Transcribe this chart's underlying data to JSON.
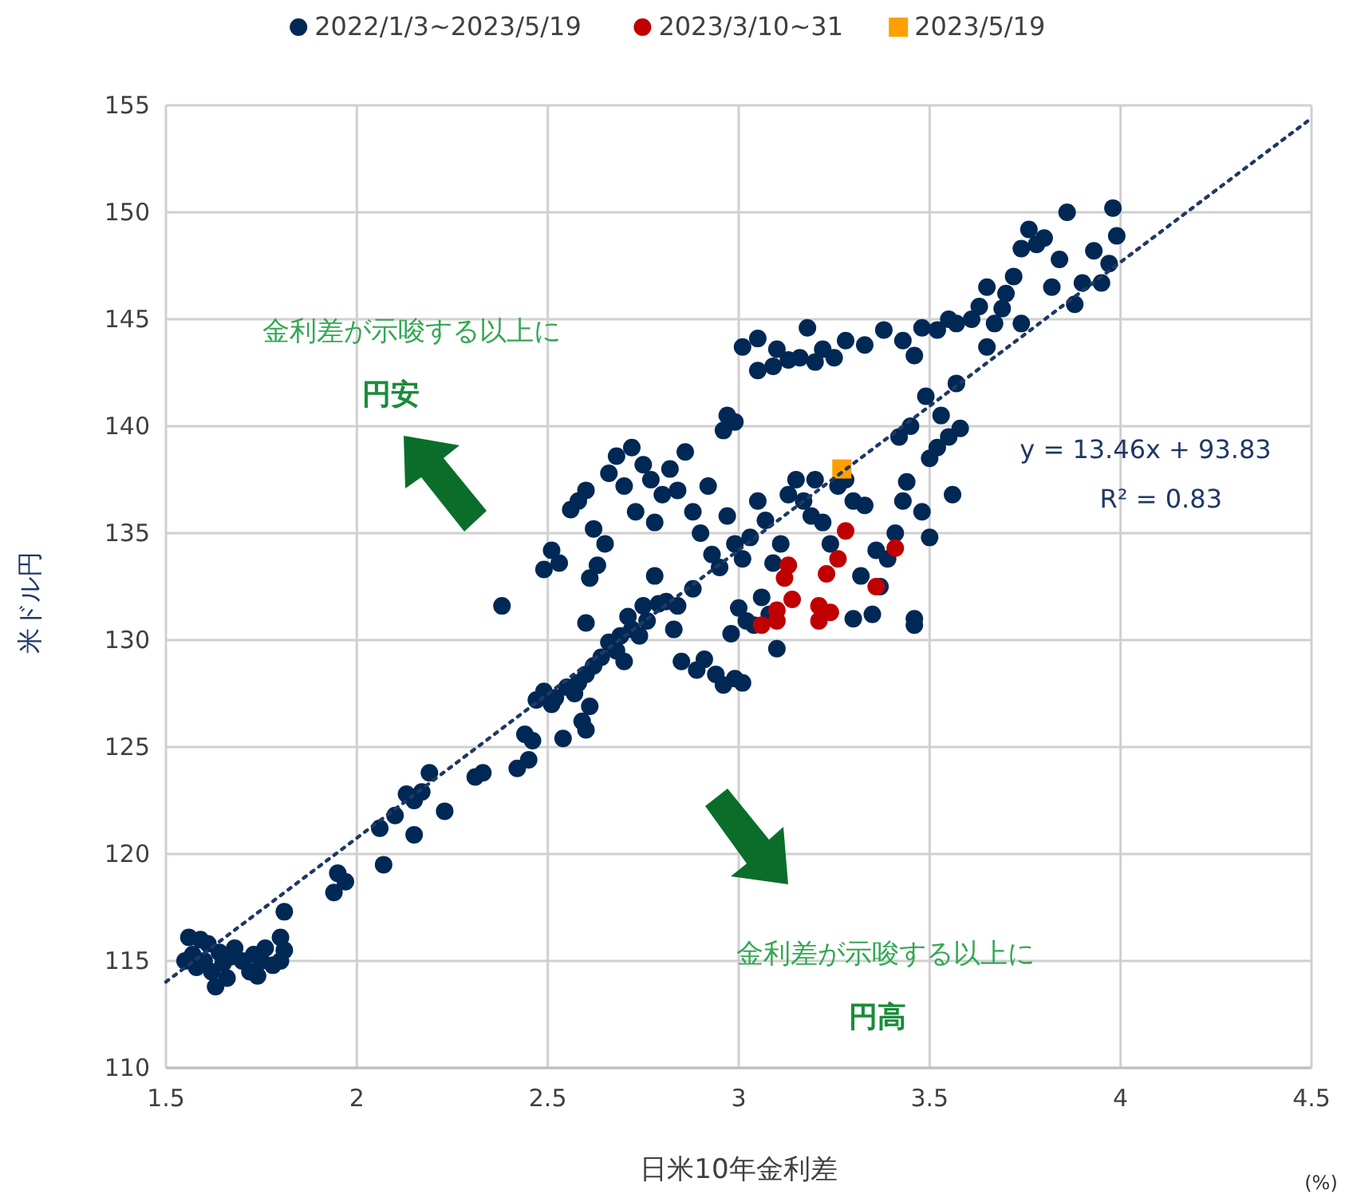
{
  "chart_data": {
    "type": "scatter",
    "xlabel": "日米10年金利差",
    "ylabel": "米ドル円",
    "xlim": [
      1.5,
      4.5
    ],
    "xticks": [
      1.5,
      2,
      2.5,
      3,
      3.5,
      4,
      4.5
    ],
    "ylim": [
      110,
      155
    ],
    "yticks": [
      110,
      115,
      120,
      125,
      130,
      135,
      140,
      145,
      150,
      155
    ],
    "grid": true,
    "legend": "top",
    "marker": "circle",
    "series": [
      {
        "name": "2022/1/3~2023/5/19",
        "color": "#002855",
        "x": [
          1.56,
          1.57,
          1.58,
          1.6,
          1.61,
          1.62,
          1.63,
          1.64,
          1.65,
          1.66,
          1.68,
          1.7,
          1.72,
          1.73,
          1.75,
          1.76,
          1.78,
          1.8,
          1.81,
          1.8,
          1.81,
          1.55,
          1.59,
          1.67,
          1.74,
          1.94,
          1.95,
          1.97,
          2.07,
          2.06,
          2.1,
          2.13,
          2.15,
          2.17,
          2.15,
          2.19,
          2.23,
          2.31,
          2.33,
          2.42,
          2.44,
          2.46,
          2.45,
          2.47,
          2.49,
          2.51,
          2.54,
          2.52,
          2.55,
          2.57,
          2.58,
          2.6,
          2.59,
          2.6,
          2.61,
          2.62,
          2.64,
          2.66,
          2.68,
          2.69,
          2.7,
          2.72,
          2.74,
          2.76,
          2.71,
          2.79,
          2.81,
          2.84,
          2.83,
          2.88,
          2.85,
          2.89,
          2.91,
          2.94,
          2.96,
          2.99,
          3.01,
          2.98,
          3,
          3.02,
          3.04,
          3.06,
          3.08,
          3.1,
          2.38,
          2.6,
          2.61,
          2.49,
          2.51,
          2.53,
          2.56,
          2.58,
          2.6,
          2.62,
          2.63,
          2.65,
          2.66,
          2.68,
          2.7,
          2.72,
          2.73,
          2.75,
          2.77,
          2.78,
          2.8,
          2.82,
          2.84,
          2.86,
          2.88,
          2.9,
          2.92,
          2.93,
          2.95,
          2.96,
          2.97,
          2.99,
          3.01,
          3.03,
          3.05,
          3.07,
          3.09,
          3.11,
          3.13,
          3.15,
          3.17,
          3.19,
          3.2,
          3.22,
          3.24,
          3.26,
          3.28,
          3.3,
          2.78,
          2.75,
          2.97,
          2.99,
          3.01,
          3.05,
          3.09,
          3.1,
          3.13,
          3.16,
          3.18,
          3.2,
          3.22,
          3.25,
          3.28,
          3.33,
          3.05,
          3.32,
          3.35,
          3.37,
          3.39,
          3.41,
          3.43,
          3.44,
          3.46,
          3.46,
          3.48,
          3.5,
          3.42,
          3.45,
          3.33,
          3.36,
          3.3,
          3.38,
          3.43,
          3.46,
          3.48,
          3.52,
          3.55,
          3.57,
          3.49,
          3.53,
          3.57,
          3.55,
          3.58,
          3.52,
          3.56,
          3.5,
          3.61,
          3.63,
          3.65,
          3.67,
          3.7,
          3.72,
          3.74,
          3.76,
          3.78,
          3.8,
          3.82,
          3.84,
          3.86,
          3.88,
          3.9,
          3.93,
          3.95,
          3.97,
          3.98,
          3.99,
          3.65,
          3.69,
          3.74
        ],
        "values": [
          116.1,
          115.3,
          114.7,
          115,
          115.8,
          114.5,
          113.8,
          115.4,
          114.9,
          114.2,
          115.6,
          115,
          114.5,
          115.3,
          115,
          115.6,
          114.8,
          116.1,
          115.5,
          115,
          117.3,
          115,
          116,
          115.2,
          114.3,
          118.2,
          119.1,
          118.7,
          119.5,
          121.2,
          121.8,
          122.8,
          122.5,
          122.9,
          120.9,
          123.8,
          122,
          123.6,
          123.8,
          124,
          125.6,
          125.3,
          124.4,
          127.2,
          127.6,
          127,
          125.4,
          127.3,
          127.8,
          127.5,
          128,
          128.4,
          126.2,
          125.8,
          126.9,
          128.8,
          129.2,
          129.9,
          129.5,
          130.2,
          129,
          130.5,
          130.2,
          130.9,
          131.1,
          131.7,
          131.8,
          131.6,
          130.5,
          132.4,
          129,
          128.6,
          129.1,
          128.4,
          127.9,
          128.2,
          128,
          130.3,
          131.5,
          130.9,
          130.7,
          132,
          131.2,
          129.6,
          131.6,
          130.8,
          132.9,
          133.3,
          134.2,
          133.6,
          136.1,
          136.5,
          137,
          135.2,
          133.5,
          134.5,
          137.8,
          138.6,
          137.2,
          139,
          136,
          138.2,
          137.5,
          135.5,
          136.8,
          138,
          137,
          138.8,
          136,
          135,
          137.2,
          134,
          133.4,
          139.8,
          135.8,
          134.5,
          133.8,
          134.8,
          136.5,
          135.6,
          133.6,
          134.5,
          136.8,
          137.5,
          136.5,
          135.8,
          137.5,
          135.5,
          134.5,
          137.2,
          137.5,
          136.5,
          133,
          131.6,
          140.5,
          140.2,
          143.7,
          144.1,
          142.8,
          143.6,
          143.1,
          143.2,
          144.6,
          143,
          143.6,
          143.2,
          144,
          143.8,
          142.6,
          133,
          131.2,
          132.5,
          133.8,
          135,
          136.5,
          137.4,
          131,
          130.7,
          136,
          138.5,
          139.5,
          140,
          136.3,
          134.2,
          131,
          144.5,
          144,
          143.3,
          144.6,
          144.5,
          145,
          144.8,
          141.4,
          140.5,
          142,
          139.5,
          139.9,
          139,
          136.8,
          134.8,
          145,
          145.6,
          146.5,
          144.8,
          146.2,
          147,
          148.3,
          149.2,
          148.5,
          148.8,
          146.5,
          147.8,
          150,
          145.7,
          146.7,
          148.2,
          146.7,
          147.6,
          150.2,
          148.9,
          143.7,
          145.5,
          144.8
        ]
      },
      {
        "name": "2023/3/10~31",
        "color": "#c00000",
        "x": [
          3.28,
          3.41,
          3.36,
          3.26,
          3.13,
          3.12,
          3.14,
          3.1,
          3.06,
          3.1,
          3.21,
          3.24,
          3.21,
          3.23
        ],
        "values": [
          135.1,
          134.3,
          132.5,
          133.8,
          133.5,
          132.9,
          131.9,
          131.4,
          130.7,
          130.9,
          131.6,
          131.3,
          130.9,
          133.1
        ]
      },
      {
        "name": "2023/5/19",
        "color": "#ffa000",
        "marker": "square",
        "x": [
          3.27
        ],
        "values": [
          138
        ]
      },
      {
        "type": "line",
        "color": "#1f3864",
        "line_style": "dotted",
        "marker": "none",
        "x": [
          1.5,
          4.5
        ],
        "values": [
          114.02,
          154.4
        ]
      }
    ],
    "annotations": [
      "y = 13.46x + 93.83",
      "R² = 0.83",
      "金利差が示唆する以上に",
      "円安",
      "金利差が示唆する以上に",
      "円高",
      "(%)"
    ]
  }
}
